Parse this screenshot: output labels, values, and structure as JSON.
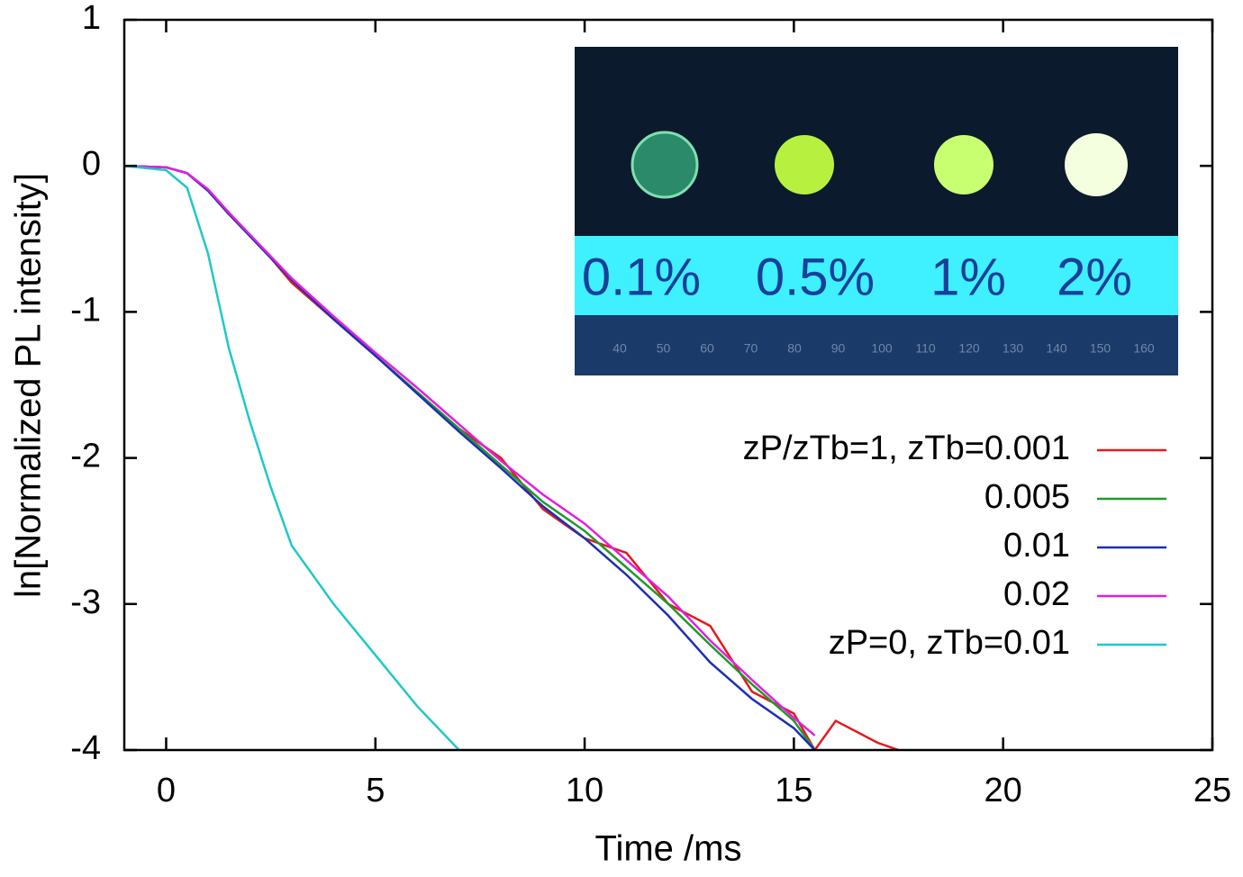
{
  "chart_data": {
    "type": "line",
    "xlabel": "Time /ms",
    "ylabel": "ln[Normalized PL intensity]",
    "x": [
      -1,
      0,
      0.5,
      1,
      1.5,
      2,
      2.5,
      3,
      4,
      5,
      6,
      7,
      8,
      9,
      10,
      11,
      12,
      13,
      14,
      15,
      15.5,
      16,
      17,
      17.5
    ],
    "series": [
      {
        "name": "zP/zTb=1, zTb=0.001",
        "color": "#e41a1c",
        "values": [
          0,
          -0.01,
          -0.05,
          -0.17,
          -0.33,
          -0.48,
          -0.63,
          -0.8,
          -1.05,
          -1.3,
          -1.55,
          -1.8,
          -2.0,
          -2.35,
          -2.55,
          -2.65,
          -3.0,
          -3.15,
          -3.6,
          -3.75,
          -4.0,
          -3.8,
          -3.95,
          -4.0
        ]
      },
      {
        "name": "0.005",
        "color": "#1f9a2a",
        "values": [
          0,
          -0.01,
          -0.05,
          -0.17,
          -0.33,
          -0.48,
          -0.63,
          -0.78,
          -1.05,
          -1.3,
          -1.55,
          -1.8,
          -2.05,
          -2.3,
          -2.5,
          -2.75,
          -3.0,
          -3.28,
          -3.55,
          -3.8,
          -4.0,
          null,
          null,
          null
        ]
      },
      {
        "name": "0.01",
        "color": "#1c2fb5",
        "values": [
          0,
          -0.01,
          -0.05,
          -0.17,
          -0.33,
          -0.48,
          -0.63,
          -0.78,
          -1.05,
          -1.3,
          -1.56,
          -1.82,
          -2.07,
          -2.33,
          -2.55,
          -2.8,
          -3.08,
          -3.4,
          -3.65,
          -3.85,
          -4.0,
          null,
          null,
          null
        ]
      },
      {
        "name": "0.02",
        "color": "#e020e0",
        "values": [
          0,
          -0.01,
          -0.05,
          -0.16,
          -0.32,
          -0.47,
          -0.62,
          -0.77,
          -1.03,
          -1.28,
          -1.52,
          -1.77,
          -2.02,
          -2.25,
          -2.45,
          -2.7,
          -2.95,
          -3.25,
          -3.52,
          -3.78,
          -3.9,
          null,
          null,
          null
        ]
      },
      {
        "name": "zP=0, zTb=0.01",
        "color": "#1fc8c8",
        "values": [
          0,
          -0.03,
          -0.15,
          -0.6,
          -1.25,
          -1.75,
          -2.2,
          -2.6,
          -3.0,
          -3.35,
          -3.7,
          -4.0,
          null,
          null,
          null,
          null,
          null,
          null,
          null,
          null,
          null,
          null,
          null,
          null
        ]
      }
    ],
    "xlim": [
      -1,
      25
    ],
    "xticks": [
      0,
      5,
      10,
      15,
      20,
      25
    ],
    "ylim": [
      -4,
      1
    ],
    "yticks": [
      -4,
      -3,
      -2,
      -1,
      0,
      1
    ],
    "grid": false,
    "legend": "right"
  },
  "inset": {
    "labels": [
      "0.1%",
      "0.5%",
      "1%",
      "2%"
    ],
    "ruler": [
      "40",
      "50",
      "60",
      "70",
      "80",
      "90",
      "100",
      "110",
      "120",
      "130",
      "140",
      "150",
      "160"
    ]
  }
}
